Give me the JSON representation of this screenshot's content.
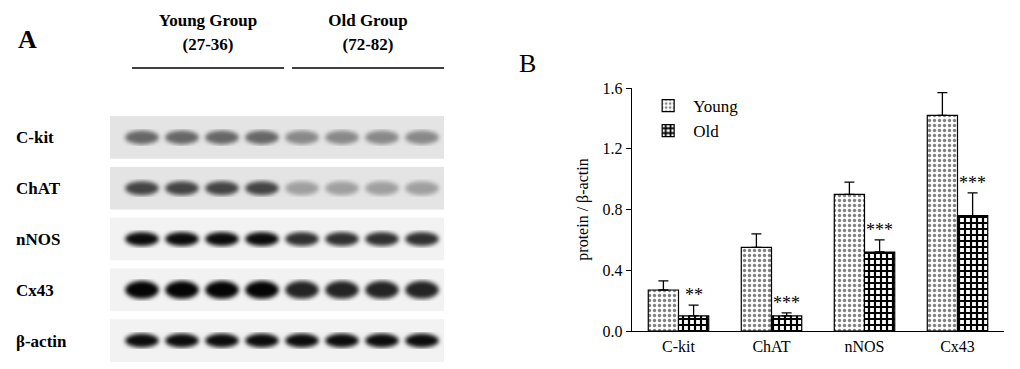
{
  "blot": {
    "label": "A",
    "groups": [
      {
        "name": "Young Group",
        "ages": "(27-36)",
        "lanes": 4
      },
      {
        "name": "Old Group",
        "ages": "(72-82)",
        "lanes": 4
      }
    ],
    "rows": [
      "C-kit",
      "ChAT",
      "nNOS",
      "Cx43",
      "β-actin"
    ]
  },
  "chart_data": {
    "type": "bar",
    "annotations": [
      {
        "text": "B"
      },
      {
        "text": "**",
        "category": "C-kit",
        "series": "Old"
      },
      {
        "text": "***",
        "category": "ChAT",
        "series": "Old"
      },
      {
        "text": "***",
        "category": "nNOS",
        "series": "Old"
      },
      {
        "text": "***",
        "category": "Cx43",
        "series": "Old"
      }
    ],
    "y_label": "protein / β-actin",
    "categories": [
      "C-kit",
      "ChAT",
      "nNOS",
      "Cx43"
    ],
    "series": [
      {
        "name": "Young",
        "color": "#808080",
        "marker": "dotted",
        "values": [
          0.27,
          0.55,
          0.9,
          1.42
        ],
        "errors": [
          0.06,
          0.09,
          0.08,
          0.15
        ]
      },
      {
        "name": "Old",
        "color": "#000000",
        "marker": "checkered",
        "values": [
          0.1,
          0.1,
          0.52,
          0.76
        ],
        "errors": [
          0.07,
          0.02,
          0.08,
          0.15
        ]
      }
    ],
    "ylim": [
      0,
      1.6
    ],
    "yticks": [
      {
        "value": 0,
        "label": "0.0"
      },
      0.4,
      0.8,
      1.2,
      1.6
    ],
    "grid": false,
    "legend": "upper left"
  }
}
